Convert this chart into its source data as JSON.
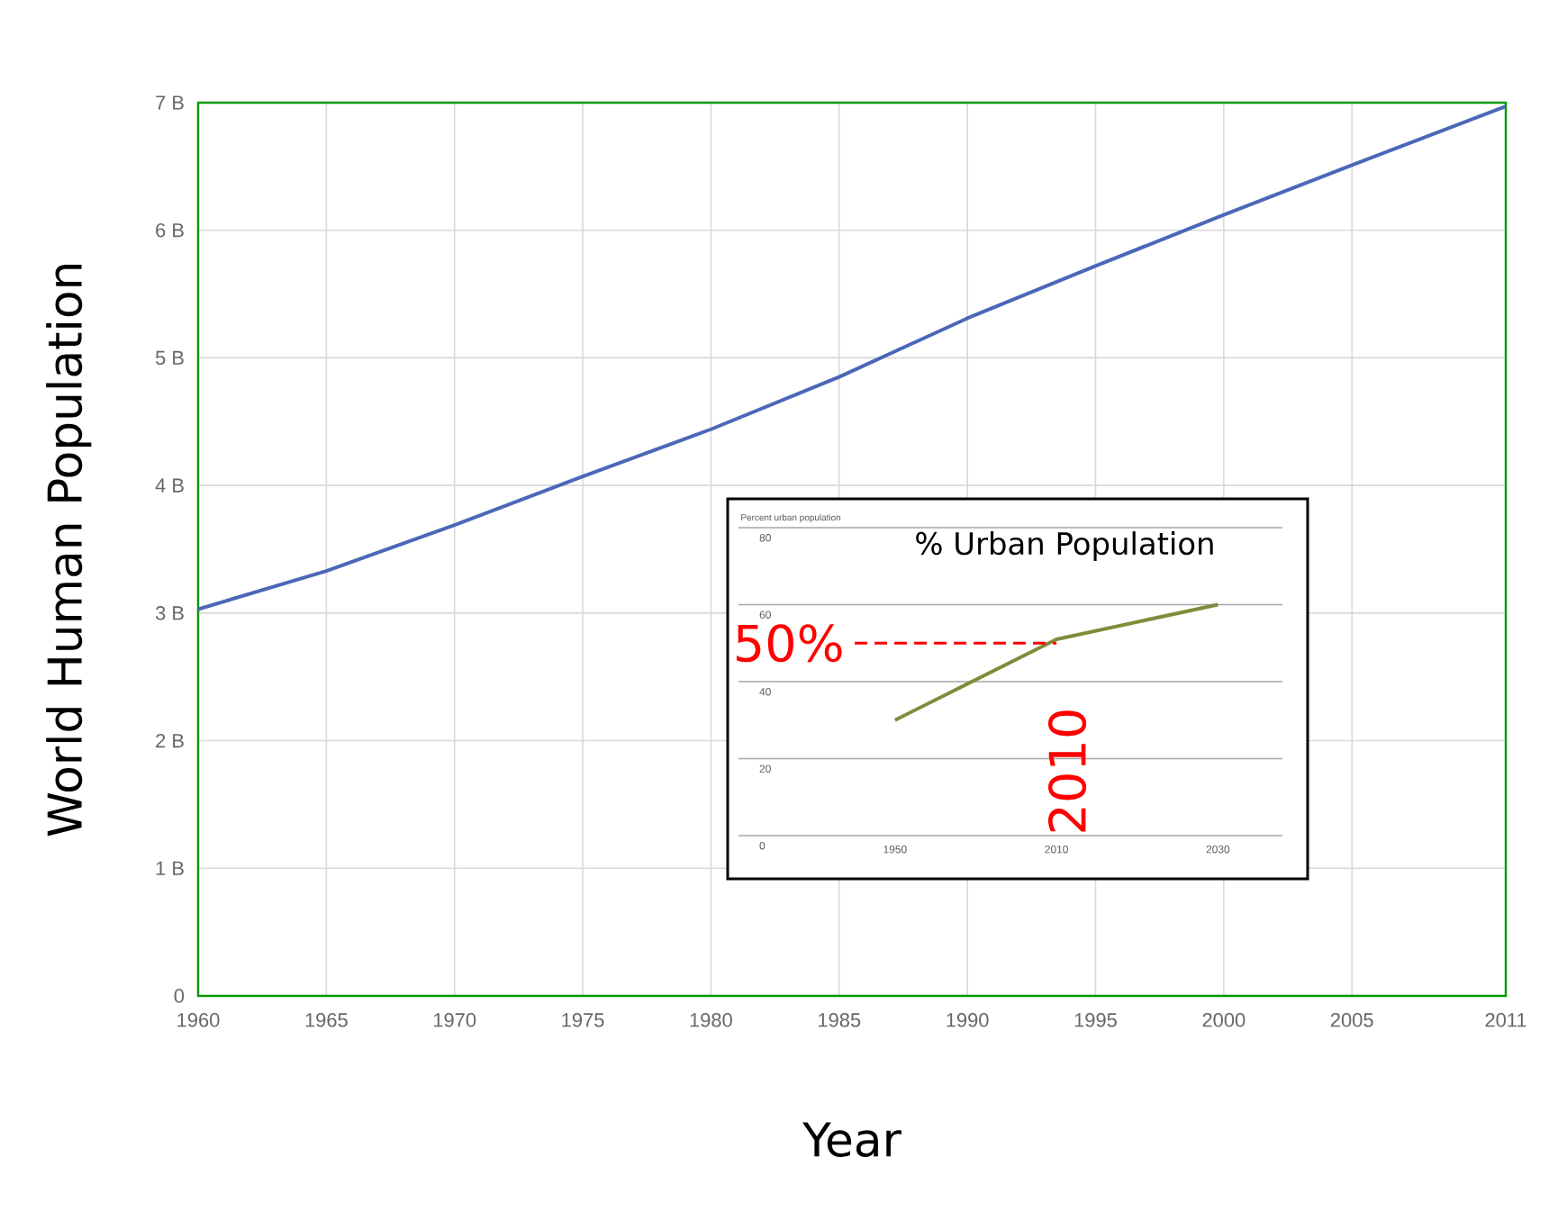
{
  "chart_data": [
    {
      "type": "line",
      "xlabel": "Year",
      "ylabel": "World Human Population",
      "x": [
        1960,
        1965,
        1970,
        1975,
        1980,
        1985,
        1990,
        1995,
        2000,
        2005,
        2011
      ],
      "series": [
        {
          "color": "#4a67b8",
          "values": [
            3.03,
            3.33,
            3.69,
            4.07,
            4.44,
            4.85,
            5.31,
            5.72,
            6.12,
            6.51,
            6.97
          ]
        }
      ],
      "xlim": [
        1960,
        2011
      ],
      "xticks": [
        1960,
        1965,
        1970,
        1975,
        1980,
        1985,
        1990,
        1995,
        2000,
        2005,
        2011
      ],
      "ylim": [
        0,
        7
      ],
      "yticks": [
        0,
        {
          "value": 1,
          "label": "1 B"
        },
        {
          "value": 2,
          "label": "2 B"
        },
        {
          "value": 3,
          "label": "3 B"
        },
        {
          "value": 4,
          "label": "4 B"
        },
        {
          "value": 5,
          "label": "5 B"
        },
        {
          "value": 6,
          "label": "6 B"
        },
        {
          "value": 7,
          "label": "7 B"
        }
      ],
      "grid": true
    },
    {
      "type": "line",
      "title": "% Urban Population",
      "subtitle": "Percent urban population",
      "categories": [
        "1950",
        "2010",
        "2030"
      ],
      "series": [
        {
          "color": "#7f8c3a",
          "values": [
            30,
            51,
            60
          ]
        }
      ],
      "ylim": [
        0,
        80
      ],
      "yticks": [
        0,
        20,
        40,
        60,
        80
      ],
      "grid": "y",
      "ref_lines": [
        {
          "axis": "y",
          "value": 50,
          "label": "50%",
          "color": "#ff0000",
          "line_style": "dashed"
        }
      ],
      "annotations": [
        "2010"
      ]
    }
  ]
}
